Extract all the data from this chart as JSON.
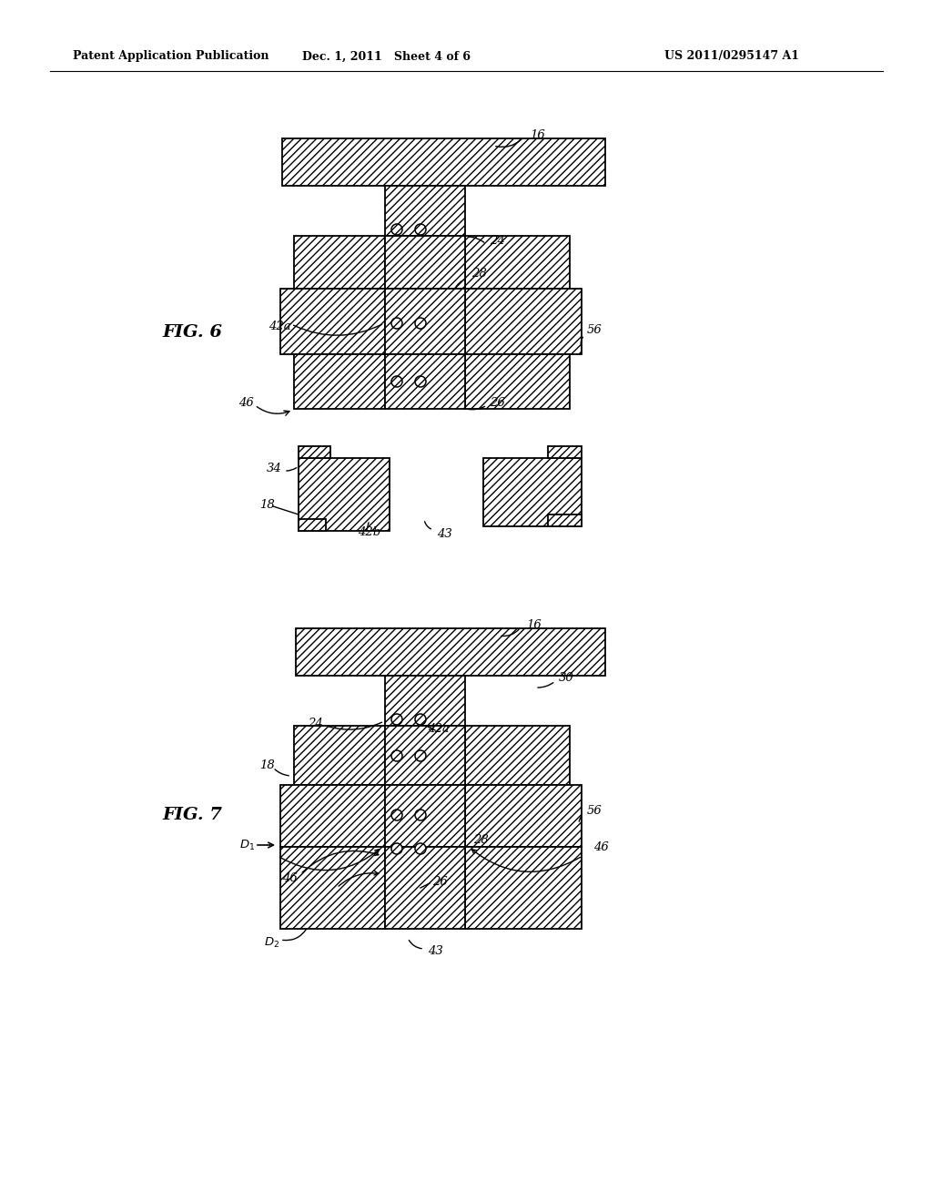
{
  "page_header_left": "Patent Application Publication",
  "page_header_middle": "Dec. 1, 2011   Sheet 4 of 6",
  "page_header_right": "US 2011/0295147 A1",
  "fig6_label": "FIG. 6",
  "fig7_label": "FIG. 7",
  "background_color": "#ffffff"
}
